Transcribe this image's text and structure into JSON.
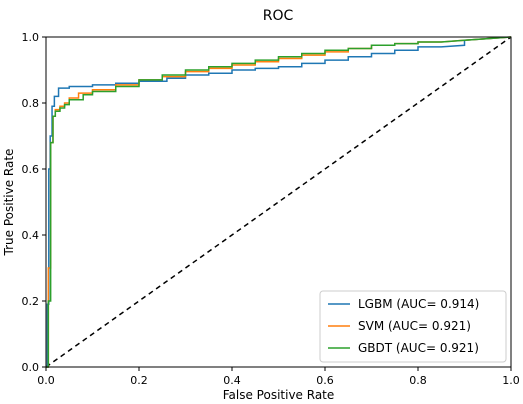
{
  "chart_data": {
    "type": "line",
    "title": "ROC",
    "xlabel": "False Positive Rate",
    "ylabel": "True Positive Rate",
    "xlim": [
      0.0,
      1.0
    ],
    "ylim": [
      0.0,
      1.0
    ],
    "xticks": [
      "0.0",
      "0.2",
      "0.4",
      "0.6",
      "0.8",
      "1.0"
    ],
    "yticks": [
      "0.0",
      "0.2",
      "0.4",
      "0.6",
      "0.8",
      "1.0"
    ],
    "grid": false,
    "legend_position": "lower-right",
    "series": [
      {
        "name": "LGBM (AUC= 0.914)",
        "color": "#1f77b4",
        "x": [
          0.0,
          0.003,
          0.003,
          0.006,
          0.006,
          0.009,
          0.009,
          0.013,
          0.013,
          0.018,
          0.018,
          0.027,
          0.027,
          0.05,
          0.05,
          0.1,
          0.1,
          0.15,
          0.15,
          0.2,
          0.2,
          0.26,
          0.26,
          0.3,
          0.3,
          0.35,
          0.35,
          0.4,
          0.4,
          0.45,
          0.45,
          0.5,
          0.5,
          0.55,
          0.55,
          0.6,
          0.6,
          0.65,
          0.65,
          0.7,
          0.7,
          0.75,
          0.75,
          0.8,
          0.8,
          0.85,
          0.9,
          0.9,
          0.95,
          1.0
        ],
        "y": [
          0.0,
          0.0,
          0.19,
          0.19,
          0.6,
          0.6,
          0.7,
          0.7,
          0.79,
          0.79,
          0.82,
          0.82,
          0.845,
          0.845,
          0.85,
          0.85,
          0.855,
          0.855,
          0.86,
          0.86,
          0.866,
          0.866,
          0.875,
          0.875,
          0.885,
          0.885,
          0.89,
          0.89,
          0.9,
          0.9,
          0.905,
          0.905,
          0.91,
          0.91,
          0.92,
          0.92,
          0.93,
          0.93,
          0.94,
          0.94,
          0.95,
          0.95,
          0.96,
          0.96,
          0.97,
          0.97,
          0.975,
          0.99,
          0.995,
          1.0
        ]
      },
      {
        "name": "SVM (AUC= 0.921)",
        "color": "#ff7f0e",
        "x": [
          0.0,
          0.005,
          0.005,
          0.01,
          0.01,
          0.015,
          0.015,
          0.02,
          0.02,
          0.03,
          0.03,
          0.04,
          0.04,
          0.05,
          0.05,
          0.07,
          0.07,
          0.1,
          0.1,
          0.15,
          0.15,
          0.2,
          0.2,
          0.25,
          0.25,
          0.3,
          0.3,
          0.35,
          0.35,
          0.4,
          0.4,
          0.45,
          0.45,
          0.5,
          0.5,
          0.55,
          0.55,
          0.6,
          0.6,
          0.65,
          0.65,
          0.7,
          0.7,
          0.75,
          0.75,
          0.8,
          0.8,
          0.85,
          0.9,
          0.95,
          1.0
        ],
        "y": [
          0.0,
          0.0,
          0.3,
          0.3,
          0.68,
          0.68,
          0.76,
          0.76,
          0.78,
          0.78,
          0.79,
          0.79,
          0.8,
          0.8,
          0.815,
          0.815,
          0.83,
          0.83,
          0.84,
          0.84,
          0.855,
          0.855,
          0.87,
          0.87,
          0.88,
          0.88,
          0.895,
          0.895,
          0.905,
          0.905,
          0.915,
          0.915,
          0.925,
          0.925,
          0.935,
          0.935,
          0.945,
          0.945,
          0.955,
          0.955,
          0.965,
          0.965,
          0.975,
          0.975,
          0.98,
          0.98,
          0.985,
          0.985,
          0.99,
          0.995,
          1.0
        ]
      },
      {
        "name": "GBDT (AUC= 0.921)",
        "color": "#2ca02c",
        "x": [
          0.0,
          0.005,
          0.005,
          0.01,
          0.01,
          0.015,
          0.015,
          0.02,
          0.02,
          0.03,
          0.03,
          0.04,
          0.04,
          0.05,
          0.05,
          0.08,
          0.08,
          0.1,
          0.1,
          0.15,
          0.15,
          0.2,
          0.2,
          0.25,
          0.25,
          0.3,
          0.3,
          0.35,
          0.35,
          0.4,
          0.4,
          0.45,
          0.45,
          0.5,
          0.5,
          0.55,
          0.55,
          0.6,
          0.6,
          0.65,
          0.65,
          0.7,
          0.7,
          0.75,
          0.75,
          0.8,
          0.8,
          0.85,
          0.9,
          0.95,
          1.0
        ],
        "y": [
          0.0,
          0.0,
          0.2,
          0.2,
          0.68,
          0.68,
          0.76,
          0.76,
          0.775,
          0.775,
          0.785,
          0.785,
          0.795,
          0.795,
          0.81,
          0.81,
          0.825,
          0.825,
          0.835,
          0.835,
          0.85,
          0.85,
          0.87,
          0.87,
          0.885,
          0.885,
          0.9,
          0.9,
          0.91,
          0.91,
          0.92,
          0.92,
          0.93,
          0.93,
          0.94,
          0.94,
          0.95,
          0.95,
          0.96,
          0.96,
          0.965,
          0.965,
          0.975,
          0.975,
          0.98,
          0.98,
          0.985,
          0.985,
          0.99,
          0.995,
          1.0
        ]
      }
    ],
    "reference_line": {
      "x": [
        0.0,
        1.0
      ],
      "y": [
        0.0,
        1.0
      ],
      "color": "#000000",
      "style": "dashed"
    }
  }
}
